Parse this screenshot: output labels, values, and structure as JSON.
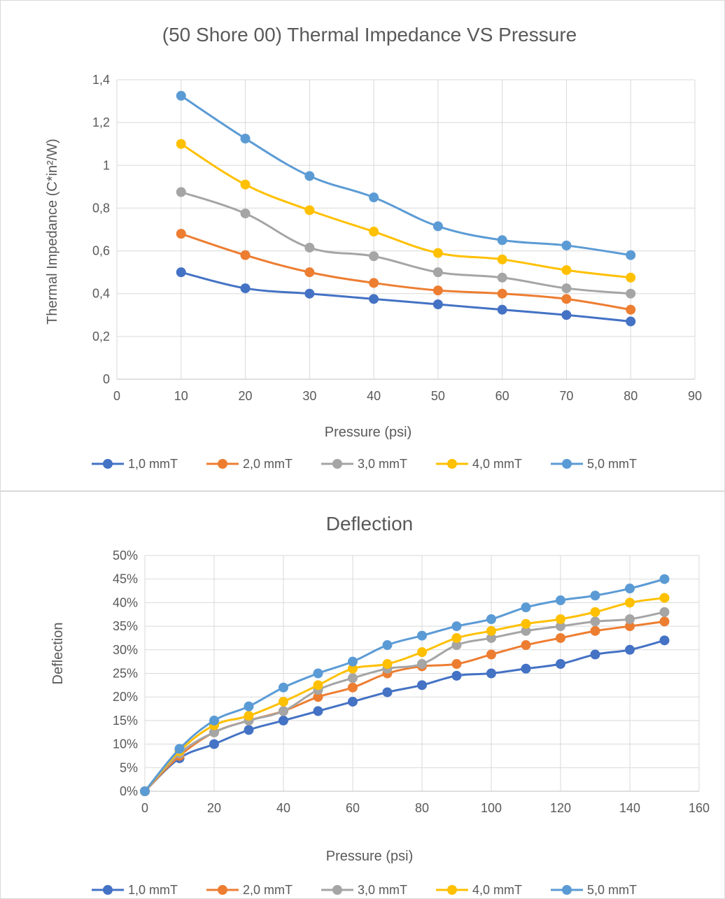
{
  "chart_data": [
    {
      "type": "line",
      "title": "(50 Shore 00) Thermal Impedance VS Pressure",
      "xlabel": "Pressure (psi)",
      "ylabel": "Thermal Impedance (C*in²/W)",
      "xlim": [
        0,
        90
      ],
      "ylim": [
        0,
        1.4
      ],
      "x_ticks": [
        "0",
        "10",
        "20",
        "30",
        "40",
        "50",
        "60",
        "70",
        "80",
        "90"
      ],
      "y_ticks": [
        "0",
        "0,2",
        "0,4",
        "0,6",
        "0,8",
        "1",
        "1,2",
        "1,4"
      ],
      "grid": true,
      "legend_position": "bottom",
      "x": [
        10,
        20,
        30,
        40,
        50,
        60,
        70,
        80
      ],
      "series": [
        {
          "name": "1,0 mmT",
          "color": "#4472C4",
          "values": [
            0.5,
            0.425,
            0.4,
            0.375,
            0.35,
            0.325,
            0.3,
            0.27
          ]
        },
        {
          "name": "2,0 mmT",
          "color": "#ED7D31",
          "values": [
            0.68,
            0.58,
            0.5,
            0.45,
            0.415,
            0.4,
            0.375,
            0.325
          ]
        },
        {
          "name": "3,0 mmT",
          "color": "#A5A5A5",
          "values": [
            0.875,
            0.775,
            0.615,
            0.575,
            0.5,
            0.475,
            0.425,
            0.4
          ]
        },
        {
          "name": "4,0 mmT",
          "color": "#FFC000",
          "values": [
            1.1,
            0.91,
            0.79,
            0.69,
            0.59,
            0.56,
            0.51,
            0.475
          ]
        },
        {
          "name": "5,0 mmT",
          "color": "#5B9BD5",
          "values": [
            1.325,
            1.125,
            0.95,
            0.85,
            0.715,
            0.65,
            0.625,
            0.58
          ]
        }
      ]
    },
    {
      "type": "line",
      "title": "Deflection",
      "xlabel": "Pressure (psi)",
      "ylabel": "Deflection",
      "xlim": [
        0,
        160
      ],
      "ylim": [
        0,
        50
      ],
      "x_ticks": [
        "0",
        "20",
        "40",
        "60",
        "80",
        "100",
        "120",
        "140",
        "160"
      ],
      "y_ticks": [
        "0%",
        "5%",
        "10%",
        "15%",
        "20%",
        "25%",
        "30%",
        "35%",
        "40%",
        "45%",
        "50%"
      ],
      "grid": true,
      "legend_position": "bottom",
      "x": [
        0,
        10,
        20,
        30,
        40,
        50,
        60,
        70,
        80,
        90,
        100,
        110,
        120,
        130,
        140,
        150
      ],
      "series": [
        {
          "name": "1,0 mmT",
          "color": "#4472C4",
          "values": [
            0,
            7,
            10,
            13,
            15,
            17,
            19,
            21,
            22.5,
            24.5,
            25,
            26,
            27,
            29,
            30,
            32
          ]
        },
        {
          "name": "2,0 mmT",
          "color": "#ED7D31",
          "values": [
            0,
            7.5,
            12.5,
            15,
            17,
            20,
            22,
            25,
            26.5,
            27,
            29,
            31,
            32.5,
            34,
            35,
            36
          ]
        },
        {
          "name": "3,0 mmT",
          "color": "#A5A5A5",
          "values": [
            0,
            8,
            12.5,
            15,
            17,
            21.5,
            24,
            26,
            27,
            31,
            32.5,
            34,
            35,
            36,
            36.5,
            38
          ]
        },
        {
          "name": "4,0 mmT",
          "color": "#FFC000",
          "values": [
            0,
            8.5,
            14,
            16,
            19,
            22.5,
            26,
            27,
            29.5,
            32.5,
            34,
            35.5,
            36.5,
            38,
            40,
            41
          ]
        },
        {
          "name": "5,0 mmT",
          "color": "#5B9BD5",
          "values": [
            0,
            9,
            15,
            18,
            22,
            25,
            27.5,
            31,
            33,
            35,
            36.5,
            39,
            40.5,
            41.5,
            43,
            45
          ]
        }
      ]
    }
  ]
}
